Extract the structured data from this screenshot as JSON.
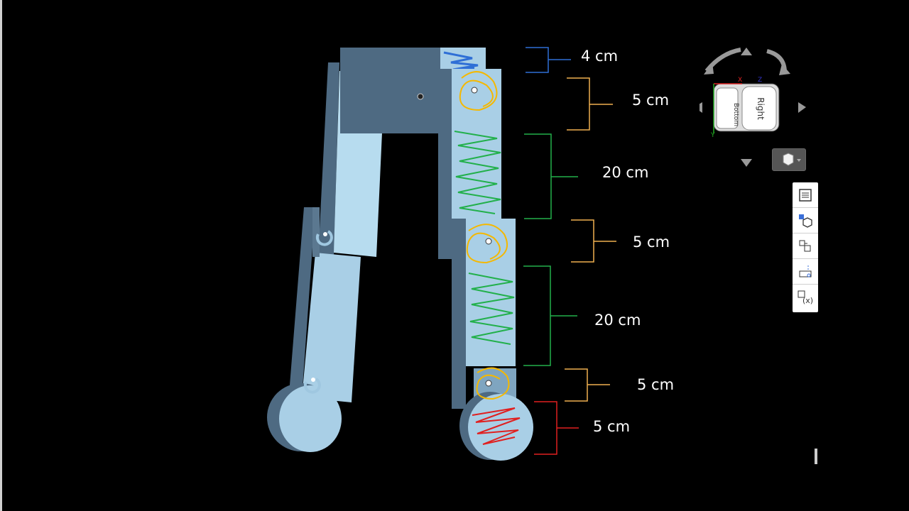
{
  "dimensions": [
    {
      "label": "4 cm",
      "color": "#2f6fd6"
    },
    {
      "label": "5 cm",
      "color": "#f0b050"
    },
    {
      "label": "20 cm",
      "color": "#22b04b"
    },
    {
      "label": "5 cm",
      "color": "#f0b050"
    },
    {
      "label": "20 cm",
      "color": "#22b04b"
    },
    {
      "label": "5 cm",
      "color": "#f0b050"
    },
    {
      "label": "5 cm",
      "color": "#e02020"
    }
  ],
  "viewcube": {
    "face_front": "Right",
    "face_side": "Bottom",
    "axis_x": "X",
    "axis_y": "Y",
    "axis_z": "Z"
  },
  "toolbar": {
    "tools": [
      "instances-list-icon",
      "view-cube-grid-icon",
      "mate-connector-icon",
      "section-view-icon",
      "variables-table-icon"
    ]
  },
  "colors": {
    "background": "#000000",
    "part_light": "#a9cfe6",
    "part_dark": "#4e6a82",
    "part_mid": "#7fa5c0"
  }
}
